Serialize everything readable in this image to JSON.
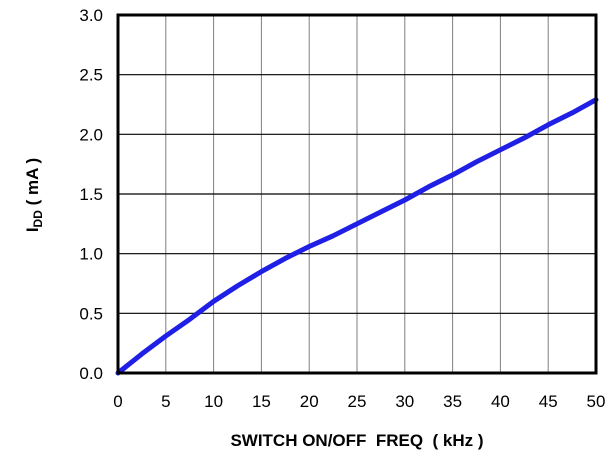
{
  "chart_data": {
    "type": "line",
    "xlabel": "SWITCH ON/OFF  FREQ  ( kHz )",
    "ylabel": {
      "symbol": "I",
      "subscript": "DD",
      "units": " ( mA )"
    },
    "xlim": [
      0,
      50
    ],
    "ylim": [
      0,
      3.0
    ],
    "x_ticks": [
      "0",
      "5",
      "10",
      "15",
      "20",
      "25",
      "30",
      "35",
      "40",
      "45",
      "50"
    ],
    "y_ticks": [
      "0.0",
      "0.5",
      "1.0",
      "1.5",
      "2.0",
      "2.5",
      "3.0"
    ],
    "grid": true,
    "series": [
      {
        "color": "#1f1fe6",
        "x": [
          0,
          2.5,
          5,
          7.5,
          10,
          12.5,
          15,
          17.5,
          20,
          22.5,
          25,
          27.5,
          30,
          32.5,
          35,
          37.5,
          40,
          42.5,
          45,
          47.5,
          50
        ],
        "y": [
          0,
          0.16,
          0.31,
          0.45,
          0.6,
          0.73,
          0.85,
          0.96,
          1.06,
          1.15,
          1.25,
          1.35,
          1.45,
          1.56,
          1.66,
          1.77,
          1.87,
          1.97,
          2.08,
          2.18,
          2.29
        ]
      }
    ]
  }
}
